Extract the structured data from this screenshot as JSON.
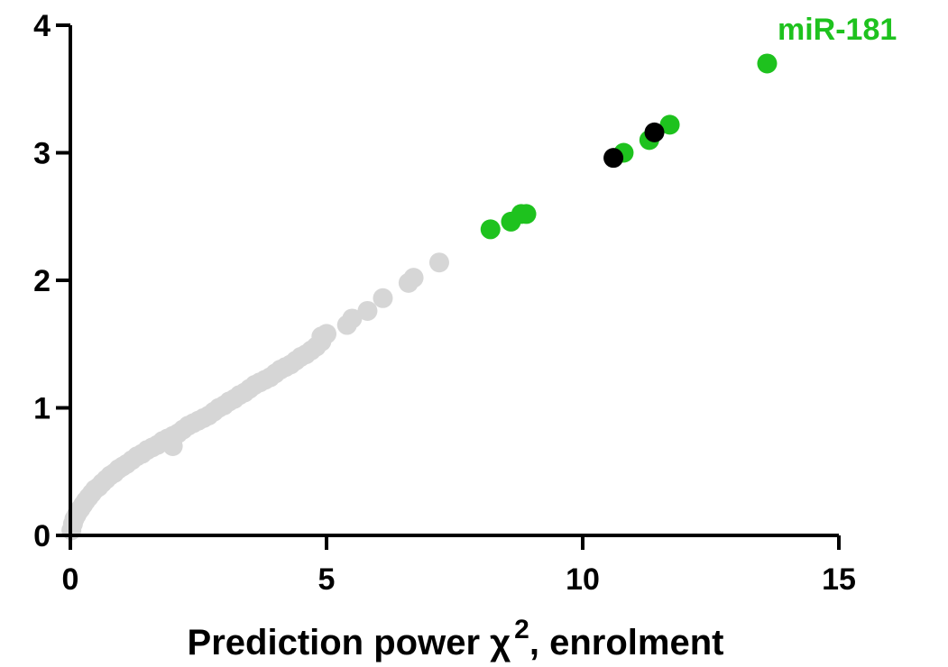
{
  "chart_data": {
    "type": "scatter",
    "title": "",
    "xlabel_prefix": "Prediction power ",
    "xlabel_symbol": "χ",
    "xlabel_superscript": "2",
    "xlabel_suffix": ", enrolment",
    "ylabel": "",
    "xlim": [
      0,
      15
    ],
    "ylim": [
      0,
      4
    ],
    "x_ticks": [
      0,
      5,
      10,
      15
    ],
    "y_ticks": [
      0,
      1,
      2,
      3,
      4
    ],
    "x_tick_labels": [
      "0",
      "5",
      "10",
      "15"
    ],
    "y_tick_labels": [
      "0",
      "1",
      "2",
      "3",
      "4"
    ],
    "grid": false,
    "colors": {
      "gray": "#d6d6d6",
      "green": "#1ec21e",
      "black": "#000000",
      "axis": "#000000"
    },
    "series": [
      {
        "color_key": "gray",
        "points": [
          [
            0.02,
            0.04
          ],
          [
            0.05,
            0.09
          ],
          [
            0.08,
            0.13
          ],
          [
            0.12,
            0.16
          ],
          [
            0.16,
            0.19
          ],
          [
            0.2,
            0.21
          ],
          [
            0.25,
            0.24
          ],
          [
            0.3,
            0.27
          ],
          [
            0.36,
            0.3
          ],
          [
            0.42,
            0.33
          ],
          [
            0.48,
            0.36
          ],
          [
            0.55,
            0.38
          ],
          [
            0.62,
            0.41
          ],
          [
            0.7,
            0.44
          ],
          [
            0.78,
            0.47
          ],
          [
            0.86,
            0.49
          ],
          [
            0.94,
            0.52
          ],
          [
            1.02,
            0.54
          ],
          [
            1.1,
            0.56
          ],
          [
            1.2,
            0.59
          ],
          [
            1.3,
            0.62
          ],
          [
            1.4,
            0.64
          ],
          [
            1.5,
            0.67
          ],
          [
            1.6,
            0.69
          ],
          [
            1.7,
            0.71
          ],
          [
            1.8,
            0.74
          ],
          [
            1.9,
            0.76
          ],
          [
            2.0,
            0.7
          ],
          [
            2.0,
            0.78
          ],
          [
            2.1,
            0.8
          ],
          [
            2.2,
            0.83
          ],
          [
            2.3,
            0.86
          ],
          [
            2.4,
            0.88
          ],
          [
            2.5,
            0.9
          ],
          [
            2.6,
            0.92
          ],
          [
            2.7,
            0.94
          ],
          [
            2.8,
            0.97
          ],
          [
            2.9,
            1.0
          ],
          [
            3.0,
            1.02
          ],
          [
            3.1,
            1.05
          ],
          [
            3.2,
            1.07
          ],
          [
            3.3,
            1.1
          ],
          [
            3.4,
            1.12
          ],
          [
            3.5,
            1.15
          ],
          [
            3.6,
            1.18
          ],
          [
            3.7,
            1.2
          ],
          [
            3.8,
            1.22
          ],
          [
            3.9,
            1.24
          ],
          [
            4.0,
            1.27
          ],
          [
            4.1,
            1.3
          ],
          [
            4.2,
            1.32
          ],
          [
            4.3,
            1.34
          ],
          [
            4.4,
            1.37
          ],
          [
            4.5,
            1.4
          ],
          [
            4.6,
            1.42
          ],
          [
            4.7,
            1.45
          ],
          [
            4.8,
            1.48
          ],
          [
            4.9,
            1.52
          ],
          [
            4.9,
            1.56
          ],
          [
            5.0,
            1.58
          ],
          [
            5.4,
            1.65
          ],
          [
            5.5,
            1.7
          ],
          [
            5.8,
            1.76
          ],
          [
            6.1,
            1.86
          ],
          [
            6.6,
            1.98
          ],
          [
            6.7,
            2.02
          ],
          [
            7.2,
            2.14
          ]
        ]
      },
      {
        "color_key": "green",
        "points": [
          [
            8.2,
            2.4
          ],
          [
            8.6,
            2.46
          ],
          [
            8.8,
            2.52
          ],
          [
            8.9,
            2.52
          ],
          [
            10.8,
            3.0
          ],
          [
            11.3,
            3.1
          ],
          [
            11.7,
            3.22
          ],
          [
            13.6,
            3.7
          ]
        ]
      },
      {
        "color_key": "black",
        "points": [
          [
            10.6,
            2.96
          ],
          [
            11.4,
            3.16
          ]
        ]
      }
    ],
    "annotations": [
      {
        "text": "miR-181",
        "color_key": "green"
      }
    ]
  }
}
